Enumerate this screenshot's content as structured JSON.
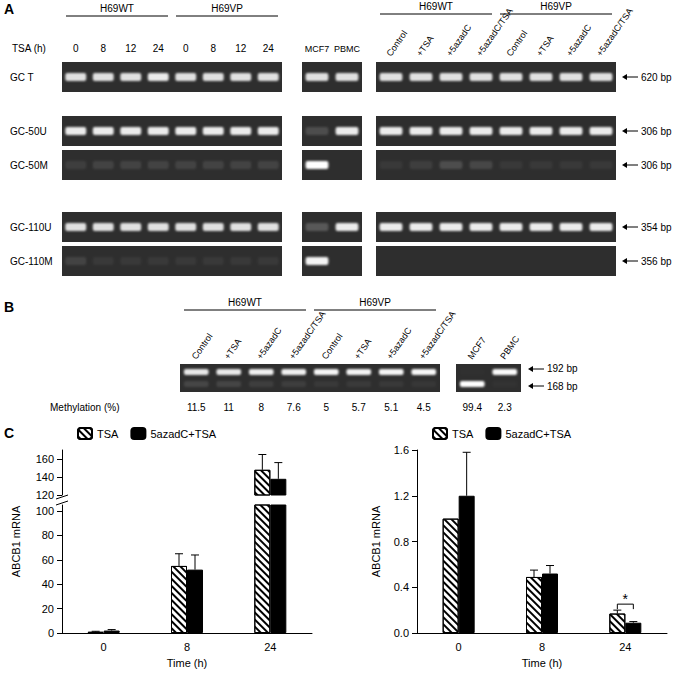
{
  "panels": {
    "A": {
      "label": "A",
      "time_header": "TSA (h)",
      "left": {
        "groups": [
          "H69WT",
          "H69VP"
        ],
        "lanes": [
          "0",
          "8",
          "12",
          "24",
          "0",
          "8",
          "12",
          "24"
        ]
      },
      "controls": {
        "lanes": [
          "MCF7",
          "PBMC"
        ]
      },
      "right": {
        "groups": [
          "H69WT",
          "H69VP"
        ],
        "lanes": [
          "Control",
          "+TSA",
          "+5azadC",
          "+5azadC/TSA",
          "Control",
          "+TSA",
          "+5azadC",
          "+5azadC/TSA"
        ]
      },
      "rows": [
        {
          "name": "GC T",
          "size": "620 bp",
          "left": [
            0.85,
            0.85,
            0.85,
            0.9,
            0.85,
            0.85,
            0.85,
            0.85
          ],
          "controls": [
            0.85,
            0.85
          ],
          "right": [
            0.85,
            0.85,
            0.85,
            0.85,
            0.85,
            0.85,
            0.85,
            0.85
          ]
        },
        {
          "name": "GC-50U",
          "size": "306 bp",
          "left": [
            0.9,
            0.9,
            0.9,
            0.9,
            0.9,
            0.9,
            0.9,
            0.9
          ],
          "controls": [
            0.15,
            0.9
          ],
          "right": [
            0.9,
            0.9,
            0.9,
            0.9,
            0.9,
            0.9,
            0.9,
            0.9
          ]
        },
        {
          "name": "GC-50M",
          "size": "306 bp",
          "left": [
            0.08,
            0.1,
            0.1,
            0.1,
            0.1,
            0.1,
            0.1,
            0.1
          ],
          "controls": [
            1,
            0
          ],
          "right": [
            0.05,
            0.08,
            0.15,
            0.12,
            0.05,
            0.05,
            0.05,
            0.05
          ]
        },
        {
          "name": "GC-110U",
          "size": "354 bp",
          "left": [
            0.85,
            0.85,
            0.85,
            0.85,
            0.85,
            0.85,
            0.85,
            0.85
          ],
          "controls": [
            0.2,
            0.9
          ],
          "right": [
            0.9,
            0.9,
            0.9,
            0.9,
            0.9,
            0.9,
            0.9,
            0.9
          ]
        },
        {
          "name": "GC-110M",
          "size": "356 bp",
          "left": [
            0.1,
            0.05,
            0.05,
            0.05,
            0.05,
            0.05,
            0.05,
            0.05
          ],
          "controls": [
            0.95,
            0
          ],
          "right": [
            0,
            0,
            0,
            0,
            0,
            0,
            0,
            0
          ]
        }
      ]
    },
    "B": {
      "label": "B",
      "groups": [
        "H69WT",
        "H69VP"
      ],
      "lanes": [
        "Control",
        "+TSA",
        "+5azadC",
        "+5azadC/TSA",
        "Control",
        "+TSA",
        "+5azadC",
        "+5azadC/TSA"
      ],
      "controls": [
        "MCF7",
        "PBMC"
      ],
      "row_label": "Methylation (%)",
      "methylation": [
        11.5,
        11,
        8,
        7.6,
        5,
        5.7,
        5.1,
        4.5
      ],
      "control_methylation": [
        99.4,
        2.3
      ],
      "sizes": [
        "192 bp",
        "168 bp"
      ]
    },
    "C": {
      "label": "C"
    }
  },
  "chart_data": [
    {
      "type": "bar",
      "xlabel": "Time (h)",
      "ylabel": "ABCB1 mRNA",
      "categories": [
        "0",
        "8",
        "24"
      ],
      "ylim": [
        0,
        170
      ],
      "axis_break": [
        105,
        120
      ],
      "yticks": [
        0,
        20,
        40,
        60,
        80,
        100,
        120,
        140,
        160
      ],
      "grid": false,
      "legend": "top-left",
      "series": [
        {
          "name": "TSA",
          "color": "#ffffff",
          "marker": "hatched",
          "values": [
            1,
            55,
            148
          ],
          "errors": [
            0.4,
            10,
            17
          ]
        },
        {
          "name": "5azadC+TSA",
          "color": "#000000",
          "values": [
            2,
            52,
            138
          ],
          "errors": [
            0.8,
            12,
            18
          ]
        }
      ]
    },
    {
      "type": "bar",
      "xlabel": "Time (h)",
      "ylabel": "ABCB1 mRNA",
      "categories": [
        "0",
        "8",
        "24"
      ],
      "ylim": [
        0,
        1.6
      ],
      "yticks": [
        {
          "value": 0,
          "label": "0.0"
        },
        0.4,
        0.8,
        1.2,
        1.6
      ],
      "grid": false,
      "legend": "top-left",
      "series": [
        {
          "name": "TSA",
          "color": "#ffffff",
          "marker": "hatched",
          "values": [
            1,
            0.49,
            0.17
          ],
          "errors": [
            0,
            0.06,
            0.03
          ]
        },
        {
          "name": "5azadC+TSA",
          "color": "#000000",
          "values": [
            1.2,
            0.52,
            0.09
          ],
          "errors": [
            0.38,
            0.07,
            0.01
          ]
        }
      ],
      "annotations": [
        {
          "text": "*",
          "category": "24"
        }
      ]
    }
  ]
}
